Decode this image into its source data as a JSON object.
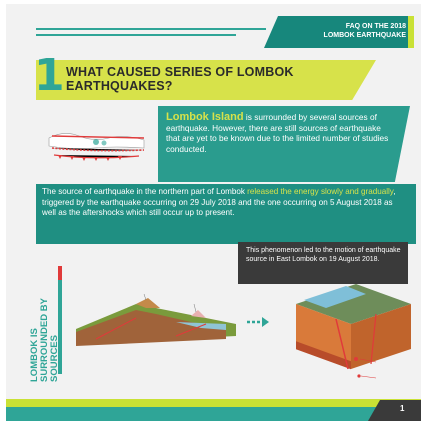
{
  "header": {
    "faq_line1": "FAQ ON THE 2018",
    "faq_line2": "LOMBOK EARTHQUAKE"
  },
  "section": {
    "number": "1",
    "title": "WHAT CAUSED SERIES OF LOMBOK EARTHQUAKES?"
  },
  "box1": {
    "highlight": "Lombok Island",
    "text": " is surrounded by several sources of earthquake. However, there are still sources of earthquake that are yet to be known due to the limited number of studies conducted."
  },
  "box2": {
    "text_a": "The source of earthquake in the northern part of Lombok ",
    "highlight": "released the energy slowly and gradually",
    "text_b": ", triggered by the earthquake occurring on 29 July 2018 and the one occurring on 5 August 2018 as well as the aftershocks which still occur up to present."
  },
  "note": {
    "text": "This phenomenon led to the motion of earthquake source in East Lombok on 19 August 2018."
  },
  "side_label": {
    "line1": "LOMBOK IS",
    "line2": "SURROUNDED BY",
    "line3": "SOURCES"
  },
  "footer": {
    "page": "1"
  },
  "colors": {
    "teal": "#2a9c8e",
    "lime": "#d7e24a",
    "dark": "#3a3a3a",
    "red": "#e03a3a"
  }
}
